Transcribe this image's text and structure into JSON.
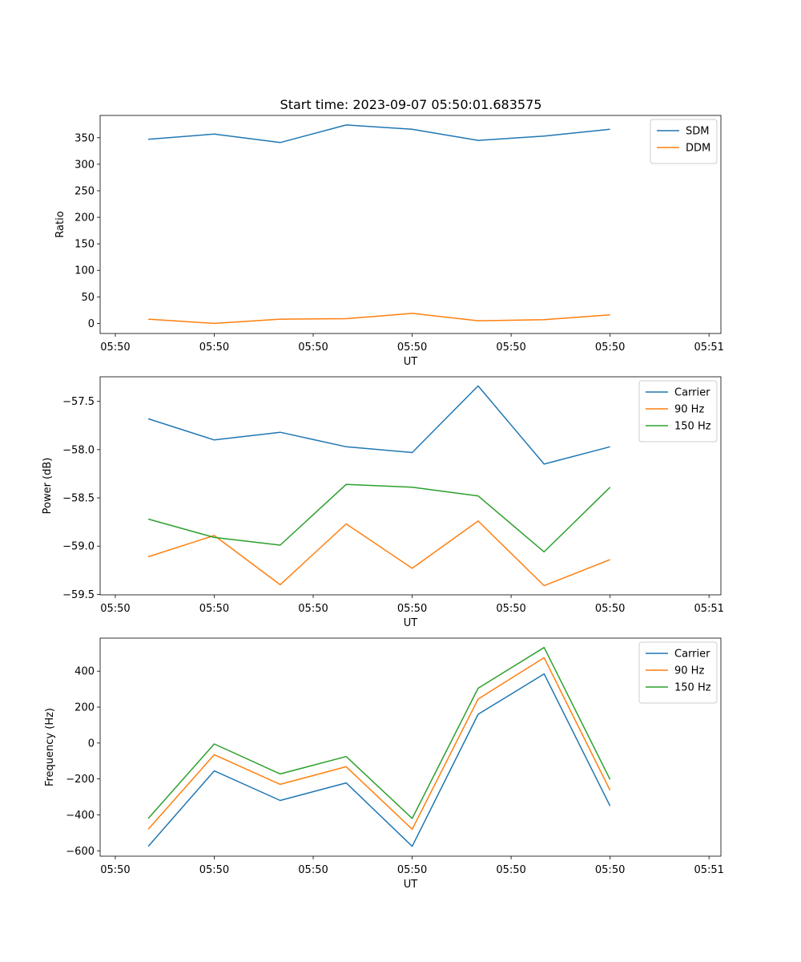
{
  "figure_title": "Start time: 2023-09-07 05:50:01.683575",
  "colors": {
    "blue": "#1f77b4",
    "orange": "#ff7f0e",
    "green": "#2ca02c"
  },
  "chart_data": [
    {
      "type": "line",
      "title": "Start time: 2023-09-07 05:50:01.683575",
      "xlabel": "UT",
      "ylabel": "Ratio",
      "x": [
        1,
        2,
        3,
        4,
        5,
        6,
        7,
        8
      ],
      "xlim": [
        0.27,
        9.68
      ],
      "xticks": [
        0.5,
        2,
        3.5,
        5,
        6.5,
        8,
        9.5
      ],
      "xtick_labels": [
        "05:50",
        "05:50",
        "05:50",
        "05:50",
        "05:50",
        "05:50",
        "05:51"
      ],
      "ylim": [
        -19,
        392
      ],
      "yticks": [
        0,
        50,
        100,
        150,
        200,
        250,
        300,
        350
      ],
      "ytick_labels": [
        "0",
        "50",
        "100",
        "150",
        "200",
        "250",
        "300",
        "350"
      ],
      "legend_position": "top-right",
      "series": [
        {
          "name": "SDM",
          "color": "#1f77b4",
          "values": [
            347,
            357,
            341,
            374,
            366,
            345,
            353,
            366
          ]
        },
        {
          "name": "DDM",
          "color": "#ff7f0e",
          "values": [
            8,
            0,
            8,
            9,
            19,
            5,
            7,
            16
          ]
        }
      ]
    },
    {
      "type": "line",
      "title": "",
      "xlabel": "UT",
      "ylabel": "Power (dB)",
      "x": [
        1,
        2,
        3,
        4,
        5,
        6,
        7,
        8
      ],
      "xlim": [
        0.27,
        9.68
      ],
      "xticks": [
        0.5,
        2,
        3.5,
        5,
        6.5,
        8,
        9.5
      ],
      "xtick_labels": [
        "05:50",
        "05:50",
        "05:50",
        "05:50",
        "05:50",
        "05:50",
        "05:51"
      ],
      "ylim": [
        -59.505,
        -57.245
      ],
      "yticks": [
        -59.5,
        -59.0,
        -58.5,
        -58.0,
        -57.5
      ],
      "ytick_labels": [
        "−59.5",
        "−59.0",
        "−58.5",
        "−58.0",
        "−57.5"
      ],
      "legend_position": "top-right",
      "series": [
        {
          "name": "Carrier",
          "color": "#1f77b4",
          "values": [
            -57.68,
            -57.9,
            -57.82,
            -57.97,
            -58.03,
            -57.34,
            -58.15,
            -57.97
          ]
        },
        {
          "name": "90 Hz",
          "color": "#ff7f0e",
          "values": [
            -59.11,
            -58.89,
            -59.4,
            -58.77,
            -59.23,
            -58.74,
            -59.41,
            -59.14
          ]
        },
        {
          "name": "150 Hz",
          "color": "#2ca02c",
          "values": [
            -58.72,
            -58.91,
            -58.99,
            -58.36,
            -58.39,
            -58.48,
            -59.06,
            -58.39
          ]
        }
      ]
    },
    {
      "type": "line",
      "title": "",
      "xlabel": "UT",
      "ylabel": "Frequency (Hz)",
      "x": [
        1,
        2,
        3,
        4,
        5,
        6,
        7,
        8
      ],
      "xlim": [
        0.27,
        9.68
      ],
      "xticks": [
        0.5,
        2,
        3.5,
        5,
        6.5,
        8,
        9.5
      ],
      "xtick_labels": [
        "05:50",
        "05:50",
        "05:50",
        "05:50",
        "05:50",
        "05:50",
        "05:51"
      ],
      "ylim": [
        -630,
        584
      ],
      "yticks": [
        -600,
        -400,
        -200,
        0,
        200,
        400
      ],
      "ytick_labels": [
        "−600",
        "−400",
        "−200",
        "0",
        "200",
        "400"
      ],
      "legend_position": "top-right",
      "series": [
        {
          "name": "Carrier",
          "color": "#1f77b4",
          "values": [
            -575,
            -155,
            -320,
            -222,
            -575,
            160,
            385,
            -350
          ]
        },
        {
          "name": "90 Hz",
          "color": "#ff7f0e",
          "values": [
            -480,
            -65,
            -230,
            -132,
            -480,
            245,
            475,
            -263
          ]
        },
        {
          "name": "150 Hz",
          "color": "#2ca02c",
          "values": [
            -420,
            -5,
            -172,
            -75,
            -420,
            305,
            532,
            -203
          ]
        }
      ]
    }
  ]
}
